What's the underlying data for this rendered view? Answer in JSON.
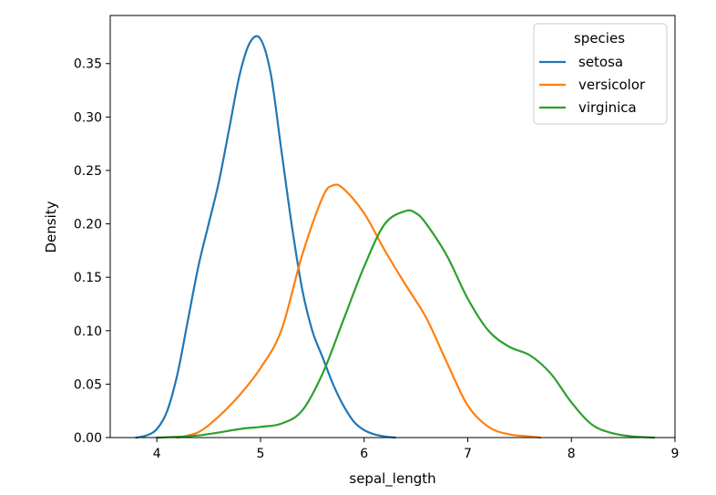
{
  "chart_data": {
    "type": "line",
    "title": "",
    "xlabel": "sepal_length",
    "ylabel": "Density",
    "xlim": [
      3.55,
      9.0
    ],
    "ylim": [
      0.0,
      0.395
    ],
    "xticks": [
      4,
      5,
      6,
      7,
      8,
      9
    ],
    "xtick_labels": [
      "4",
      "5",
      "6",
      "7",
      "8",
      "9"
    ],
    "yticks": [
      0.0,
      0.05,
      0.1,
      0.15,
      0.2,
      0.25,
      0.3,
      0.35
    ],
    "ytick_labels": [
      "0.00",
      "0.05",
      "0.10",
      "0.15",
      "0.20",
      "0.25",
      "0.30",
      "0.35"
    ],
    "grid": false,
    "legend": {
      "title": "species",
      "placement": "top-right"
    },
    "series": [
      {
        "name": "setosa",
        "color": "#1f77b4",
        "x": [
          3.8,
          3.9,
          4.0,
          4.1,
          4.2,
          4.3,
          4.4,
          4.5,
          4.6,
          4.7,
          4.8,
          4.9,
          5.0,
          5.1,
          5.2,
          5.3,
          5.4,
          5.5,
          5.6,
          5.7,
          5.8,
          5.9,
          6.0,
          6.1,
          6.2,
          6.3
        ],
        "y": [
          0.0,
          0.002,
          0.008,
          0.025,
          0.06,
          0.11,
          0.16,
          0.2,
          0.24,
          0.29,
          0.34,
          0.37,
          0.373,
          0.34,
          0.27,
          0.2,
          0.14,
          0.1,
          0.075,
          0.05,
          0.03,
          0.015,
          0.007,
          0.003,
          0.001,
          0.0
        ]
      },
      {
        "name": "versicolor",
        "color": "#ff7f0e",
        "x": [
          4.2,
          4.4,
          4.6,
          4.8,
          5.0,
          5.2,
          5.4,
          5.6,
          5.7,
          5.8,
          6.0,
          6.2,
          6.4,
          6.6,
          6.8,
          7.0,
          7.2,
          7.4,
          7.6,
          7.7
        ],
        "y": [
          0.0,
          0.005,
          0.02,
          0.04,
          0.065,
          0.1,
          0.17,
          0.225,
          0.236,
          0.233,
          0.21,
          0.175,
          0.143,
          0.112,
          0.07,
          0.03,
          0.01,
          0.003,
          0.001,
          0.0
        ]
      },
      {
        "name": "virginica",
        "color": "#2ca02c",
        "x": [
          4.0,
          4.4,
          4.8,
          5.0,
          5.2,
          5.4,
          5.6,
          5.8,
          6.0,
          6.2,
          6.4,
          6.5,
          6.6,
          6.8,
          7.0,
          7.2,
          7.4,
          7.6,
          7.8,
          8.0,
          8.2,
          8.4,
          8.6,
          8.8
        ],
        "y": [
          0.0,
          0.002,
          0.008,
          0.01,
          0.013,
          0.025,
          0.06,
          0.11,
          0.16,
          0.2,
          0.212,
          0.21,
          0.2,
          0.17,
          0.13,
          0.1,
          0.085,
          0.077,
          0.06,
          0.033,
          0.012,
          0.004,
          0.001,
          0.0
        ]
      }
    ]
  }
}
